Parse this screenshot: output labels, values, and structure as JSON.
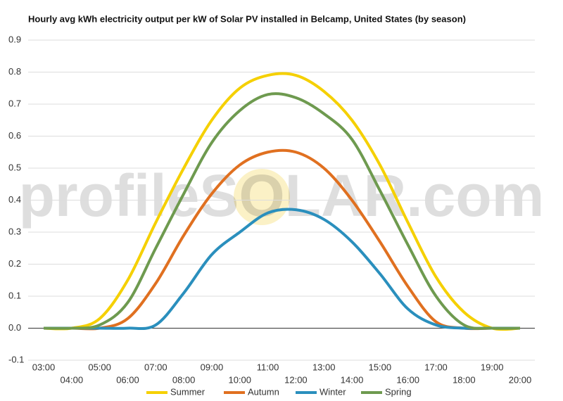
{
  "chart_data": {
    "type": "line",
    "title": "Hourly avg kWh electricity output per kW of Solar PV installed in Belcamp, United States (by season)",
    "watermark": "profileSOLAR.com",
    "categories": [
      "03:00",
      "04:00",
      "05:00",
      "06:00",
      "07:00",
      "08:00",
      "09:00",
      "10:00",
      "11:00",
      "12:00",
      "13:00",
      "14:00",
      "15:00",
      "16:00",
      "17:00",
      "18:00",
      "19:00",
      "20:00"
    ],
    "series": [
      {
        "name": "Summer",
        "color": "#f5d000",
        "values": [
          0,
          0,
          0.03,
          0.15,
          0.33,
          0.5,
          0.65,
          0.75,
          0.79,
          0.79,
          0.74,
          0.65,
          0.51,
          0.33,
          0.16,
          0.05,
          0,
          0
        ]
      },
      {
        "name": "Autumn",
        "color": "#e07020",
        "values": [
          0,
          0,
          0,
          0.03,
          0.14,
          0.29,
          0.42,
          0.51,
          0.55,
          0.55,
          0.5,
          0.4,
          0.27,
          0.13,
          0.02,
          0,
          0,
          0
        ]
      },
      {
        "name": "Winter",
        "color": "#2a8fbd",
        "values": [
          0,
          0,
          0,
          0,
          0.01,
          0.11,
          0.23,
          0.3,
          0.36,
          0.37,
          0.34,
          0.27,
          0.17,
          0.06,
          0.01,
          0,
          0,
          0
        ]
      },
      {
        "name": "Spring",
        "color": "#6e9a4f",
        "values": [
          0,
          0,
          0.01,
          0.08,
          0.25,
          0.42,
          0.58,
          0.68,
          0.73,
          0.72,
          0.67,
          0.59,
          0.43,
          0.26,
          0.1,
          0.01,
          0,
          0
        ]
      }
    ],
    "ylim": [
      -0.1,
      0.9
    ],
    "yticks": [
      -0.1,
      {
        "value": 0,
        "label": "0.0"
      },
      0.1,
      0.2,
      0.3,
      0.4,
      0.5,
      0.6,
      0.7,
      0.8,
      0.9
    ],
    "grid": true,
    "legend": "bottom"
  }
}
